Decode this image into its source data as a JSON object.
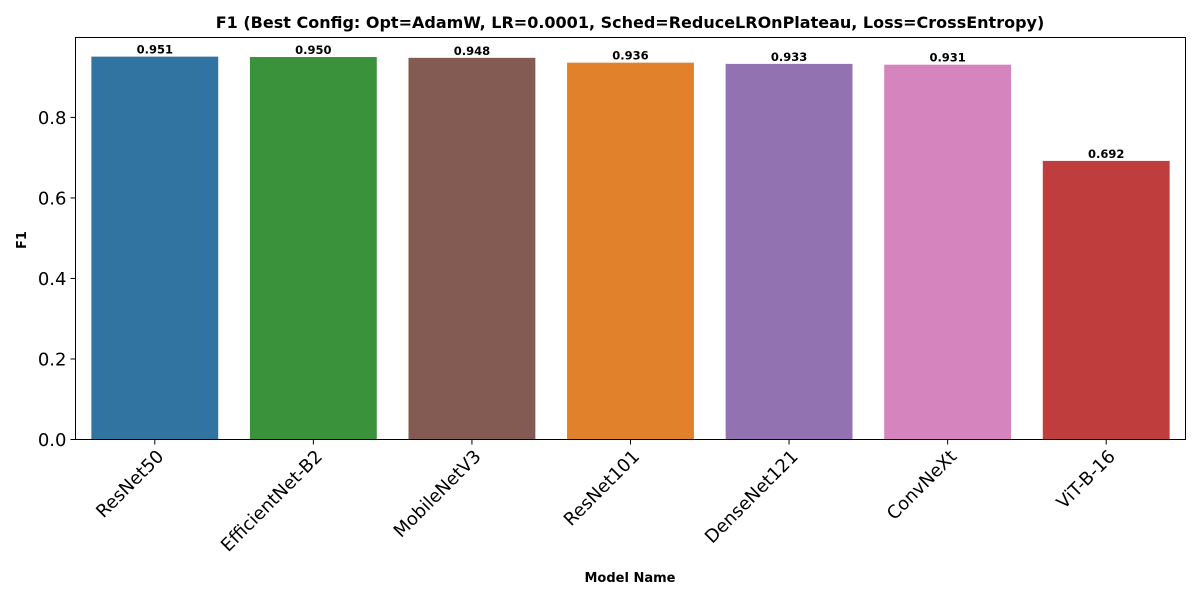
{
  "chart_data": {
    "type": "bar",
    "title": "F1 (Best Config: Opt=AdamW, LR=0.0001, Sched=ReduceLROnPlateau, Loss=CrossEntropy)",
    "xlabel": "Model Name",
    "ylabel": "F1",
    "categories": [
      "ResNet50",
      "EfficientNet-B2",
      "MobileNetV3",
      "ResNet101",
      "DenseNet121",
      "ConvNeXt",
      "ViT-B-16"
    ],
    "values": [
      0.951,
      0.95,
      0.948,
      0.936,
      0.933,
      0.931,
      0.692
    ],
    "value_labels": [
      "0.951",
      "0.950",
      "0.948",
      "0.936",
      "0.933",
      "0.931",
      "0.692"
    ],
    "colors": [
      "#3274a1",
      "#3a923a",
      "#845b53",
      "#e1812c",
      "#9372b2",
      "#d684bd",
      "#c03d3e"
    ],
    "ylim": [
      0,
      0.9985
    ],
    "yticks": [
      0.0,
      0.2,
      0.4,
      0.6,
      0.8
    ],
    "ytick_labels": [
      "0.0",
      "0.2",
      "0.4",
      "0.6",
      "0.8"
    ],
    "grid": false,
    "legend": "none"
  }
}
